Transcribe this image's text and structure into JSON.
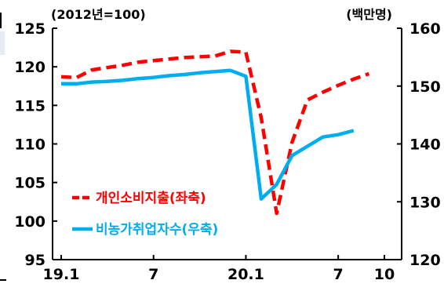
{
  "chart_data": {
    "type": "line",
    "unit_left": "(2012년=100)",
    "unit_right": "(백만명)",
    "x": [
      1,
      2,
      3,
      4,
      5,
      6,
      7,
      8,
      9,
      10,
      11,
      12,
      13,
      14,
      15,
      16,
      17,
      18,
      19,
      20,
      21,
      22
    ],
    "x_tick_labels": [
      {
        "x": 1,
        "label": "19.1"
      },
      {
        "x": 7,
        "label": "7"
      },
      {
        "x": 13,
        "label": "20.1"
      },
      {
        "x": 19,
        "label": "7"
      },
      {
        "x": 22,
        "label": "10"
      }
    ],
    "xlim": [
      1,
      22
    ],
    "y_left": {
      "ylim": [
        95,
        125
      ],
      "ticks": [
        95,
        100,
        105,
        110,
        115,
        120,
        125
      ]
    },
    "y_right": {
      "ylim": [
        120,
        160
      ],
      "ticks": [
        120,
        130,
        140,
        150,
        160
      ]
    },
    "grid": false,
    "legend_position": "lower-left",
    "series": [
      {
        "name": "개인소비지출(좌축)",
        "axis": "left",
        "color": "#ff0000",
        "style": "dashed",
        "values": [
          118.7,
          118.6,
          119.6,
          119.9,
          120.2,
          120.6,
          120.8,
          121.0,
          121.2,
          121.3,
          121.4,
          122.0,
          121.9,
          113.4,
          101.0,
          110.2,
          115.7,
          116.7,
          117.6,
          118.4,
          119.1,
          null
        ]
      },
      {
        "name": "비농가취업자수(우축)",
        "axis": "right",
        "color": "#00aef0",
        "style": "solid",
        "values": [
          150.4,
          150.4,
          150.7,
          150.8,
          151.0,
          151.3,
          151.5,
          151.8,
          152.0,
          152.3,
          152.5,
          152.7,
          151.7,
          130.5,
          133.0,
          138.0,
          139.6,
          141.2,
          141.6,
          142.3,
          null,
          null
        ]
      }
    ]
  }
}
